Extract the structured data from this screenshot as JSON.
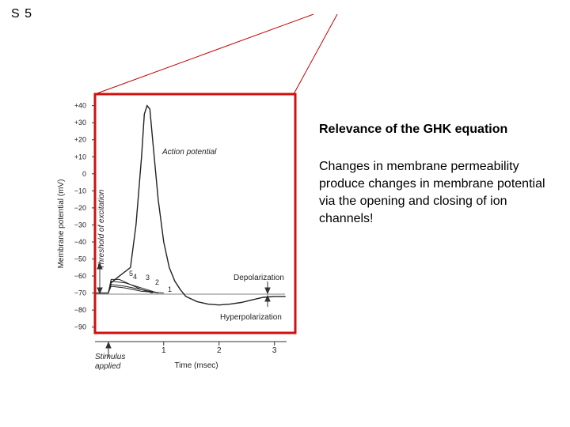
{
  "slide_label": "S 5",
  "heading": "Relevance of the GHK equation",
  "body": "Changes in membrane permeability produce changes in membrane potential via the opening and closing of ion channels!",
  "chart_data": {
    "type": "line",
    "y_label": "Membrane potential (mV)",
    "x_label": "Time (msec)",
    "annotations": [
      "Action potential",
      "Threshold of excitation",
      "Depolarization",
      "Hyperpolarization",
      "Stimulus applied"
    ],
    "xlim": [
      -0.24,
      3.39
    ],
    "xticks": [
      1,
      2,
      3
    ],
    "ylim": [
      -92,
      44
    ],
    "yticks": [
      {
        "value": 40,
        "label": "+40"
      },
      {
        "value": 30,
        "label": "+30"
      },
      {
        "value": 20,
        "label": "+20"
      },
      {
        "value": 10,
        "label": "+10"
      },
      0,
      {
        "value": -10,
        "label": "−10"
      },
      {
        "value": -20,
        "label": "−20"
      },
      {
        "value": -30,
        "label": "−30"
      },
      {
        "value": -40,
        "label": "−40"
      },
      {
        "value": -50,
        "label": "−50"
      },
      {
        "value": -60,
        "label": "−60"
      },
      {
        "value": -70,
        "label": "−70"
      },
      {
        "value": -80,
        "label": "−80"
      },
      {
        "value": -90,
        "label": "−90"
      }
    ],
    "series": [
      {
        "name": "5",
        "color": "#222222",
        "x": [
          -0.24,
          0,
          0.05,
          0.2,
          0.4,
          0.5,
          0.6,
          0.65,
          0.7,
          0.75,
          0.8,
          0.9,
          1.0,
          1.1,
          1.2,
          1.3,
          1.4,
          1.6,
          1.8,
          2.0,
          2.2,
          2.4,
          2.6,
          2.8,
          3.0,
          3.2
        ],
        "values": [
          -70,
          -70,
          -64,
          -60,
          -55,
          -30,
          10,
          35,
          40,
          38,
          20,
          -15,
          -40,
          -55,
          -63,
          -68,
          -72,
          -75,
          -76.5,
          -77,
          -76.5,
          -75.5,
          -74,
          -72.5,
          -72,
          -72
        ]
      },
      {
        "name": "4",
        "color": "#222222",
        "x": [
          0,
          0.05,
          0.2,
          0.4,
          0.6,
          0.8
        ],
        "values": [
          -70,
          -62,
          -62,
          -65,
          -68,
          -70
        ]
      },
      {
        "name": "3",
        "color": "#222222",
        "x": [
          0,
          0.05,
          0.3,
          0.5,
          0.7,
          0.9
        ],
        "values": [
          -70,
          -63,
          -64,
          -66,
          -68,
          -70
        ]
      },
      {
        "name": "2",
        "color": "#222222",
        "x": [
          0,
          0.05,
          0.3,
          0.6,
          0.9
        ],
        "values": [
          -70,
          -65,
          -66,
          -68,
          -70
        ]
      },
      {
        "name": "1",
        "color": "#222222",
        "x": [
          0,
          0.05,
          0.3,
          0.6,
          1.0
        ],
        "values": [
          -70,
          -66,
          -67,
          -69,
          -70
        ]
      }
    ]
  }
}
